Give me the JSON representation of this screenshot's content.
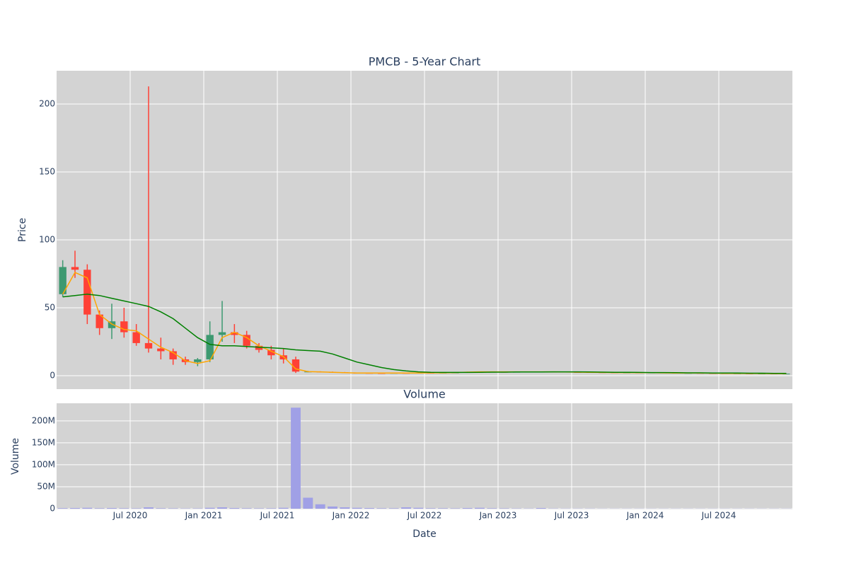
{
  "chart_data": [
    {
      "type": "candlestick",
      "title": "PMCB - 5-Year Chart",
      "y_label": "Price",
      "x": [
        "2020-01",
        "2020-02",
        "2020-03",
        "2020-04",
        "2020-05",
        "2020-06",
        "2020-07",
        "2020-08",
        "2020-09",
        "2020-10",
        "2020-11",
        "2020-12",
        "2021-01",
        "2021-02",
        "2021-03",
        "2021-04",
        "2021-05",
        "2021-06",
        "2021-07",
        "2021-08",
        "2021-09",
        "2021-10",
        "2021-11",
        "2021-12",
        "2022-01",
        "2022-02",
        "2022-03",
        "2022-04",
        "2022-05",
        "2022-06",
        "2022-07",
        "2022-08",
        "2022-09",
        "2022-10",
        "2022-11",
        "2022-12",
        "2023-01",
        "2023-02",
        "2023-03",
        "2023-04",
        "2023-05",
        "2023-06",
        "2023-07",
        "2023-08",
        "2023-09",
        "2023-10",
        "2023-11",
        "2023-12",
        "2024-01",
        "2024-02",
        "2024-03",
        "2024-04",
        "2024-05",
        "2024-06",
        "2024-07",
        "2024-08",
        "2024-09",
        "2024-10",
        "2024-11",
        "2024-12"
      ],
      "open": [
        60,
        80,
        78,
        45,
        35,
        40,
        32,
        24,
        20,
        18,
        12,
        10,
        12,
        30,
        32,
        30,
        22,
        19,
        15,
        12,
        3,
        3,
        2.7,
        2.5,
        2.1,
        2.0,
        1.9,
        1.8,
        2.0,
        1.9,
        2.1,
        2.0,
        2.2,
        2.3,
        2.7,
        2.8,
        2.8,
        2.7,
        2.8,
        2.9,
        2.8,
        2.9,
        2.7,
        2.6,
        2.5,
        2.4,
        2.3,
        2.3,
        2.2,
        2.3,
        2.1,
        2.0,
        2.0,
        1.9,
        1.8,
        1.7,
        1.7,
        1.6,
        1.6,
        1.5
      ],
      "high": [
        85,
        92,
        82,
        48,
        53,
        50,
        38,
        213,
        28,
        20,
        14,
        13,
        40,
        55,
        38,
        33,
        24,
        22,
        20,
        14,
        3.5,
        3.2,
        3,
        2.7,
        2.3,
        2.2,
        2.1,
        2.2,
        2.3,
        2.4,
        2.4,
        2.5,
        2.6,
        2.9,
        3.1,
        3.0,
        3.0,
        3.0,
        3.1,
        3.1,
        3.0,
        3.1,
        2.9,
        2.8,
        2.7,
        2.6,
        2.5,
        2.5,
        2.5,
        2.4,
        2.3,
        2.2,
        2.2,
        2.1,
        2.0,
        1.9,
        1.9,
        1.8,
        1.8,
        1.7
      ],
      "low": [
        58,
        72,
        38,
        30,
        27,
        28,
        22,
        17,
        12,
        8,
        8,
        7,
        10,
        25,
        24,
        20,
        17,
        12,
        9,
        2,
        2.5,
        2.5,
        2.3,
        2.0,
        1.8,
        1.7,
        1.6,
        1.6,
        1.7,
        1.7,
        1.8,
        1.8,
        1.9,
        2.1,
        2.4,
        2.5,
        2.5,
        2.5,
        2.6,
        2.6,
        2.6,
        2.5,
        2.4,
        2.3,
        2.2,
        2.1,
        2.0,
        2.0,
        1.9,
        1.9,
        1.8,
        1.8,
        1.7,
        1.6,
        1.5,
        1.5,
        1.4,
        1.4,
        1.3,
        1.3
      ],
      "close": [
        80,
        78,
        45,
        35,
        40,
        32,
        24,
        20,
        18,
        12,
        10,
        12,
        30,
        32,
        30,
        22,
        19,
        15,
        12,
        3,
        3,
        2.7,
        2.5,
        2.1,
        2.0,
        1.9,
        1.8,
        2.0,
        1.9,
        2.1,
        2.0,
        2.2,
        2.3,
        2.7,
        2.8,
        2.8,
        2.7,
        2.8,
        2.9,
        2.8,
        2.9,
        2.7,
        2.6,
        2.5,
        2.4,
        2.3,
        2.3,
        2.2,
        2.3,
        2.1,
        2.0,
        2.0,
        1.9,
        1.8,
        1.7,
        1.7,
        1.6,
        1.6,
        1.5,
        1.5
      ],
      "increasing_color": "#3d9970",
      "decreasing_color": "#ff4136",
      "series": [
        {
          "color": "#ffa500",
          "values": [
            60,
            76,
            72,
            45,
            38,
            34,
            33,
            27,
            21,
            17,
            11,
            9,
            11,
            28,
            32,
            28,
            22,
            18,
            14,
            5,
            3,
            2.8,
            2.5,
            2.2,
            2.0,
            1.9,
            1.9,
            1.9,
            2.0,
            2.0,
            2.1,
            2.1,
            2.3,
            2.6,
            2.8,
            2.8,
            2.8,
            2.8,
            2.8,
            2.8,
            2.8,
            2.7,
            2.6,
            2.5,
            2.4,
            2.3,
            2.3,
            2.2,
            2.2,
            2.1,
            2.0,
            2.0,
            1.9,
            1.8,
            1.7,
            1.7,
            1.6,
            1.6,
            1.5,
            1.5
          ]
        },
        {
          "color": "#008000",
          "values": [
            58,
            59,
            60,
            59,
            57,
            55,
            53,
            51,
            47,
            42,
            35,
            28,
            23,
            22,
            22,
            21.5,
            21,
            20.5,
            20,
            19,
            18.5,
            18,
            16,
            13,
            10,
            8,
            6,
            4.5,
            3.5,
            2.8,
            2.5,
            2.4,
            2.4,
            2.4,
            2.5,
            2.6,
            2.6,
            2.7,
            2.7,
            2.7,
            2.8,
            2.8,
            2.8,
            2.7,
            2.6,
            2.5,
            2.5,
            2.4,
            2.3,
            2.3,
            2.2,
            2.1,
            2.1,
            2.0,
            2.0,
            1.9,
            1.8,
            1.8,
            1.7,
            1.7
          ]
        }
      ],
      "xlim": [
        "2020-01",
        "2024-12"
      ],
      "ylim": [
        -9.9,
        224.5
      ],
      "yticks": [
        0,
        50,
        100,
        150,
        200
      ],
      "grid": true
    },
    {
      "type": "bar",
      "title": "Volume",
      "y_label": "Volume",
      "x_label": "Date",
      "color": "#a0a0e6",
      "values": [
        1200000,
        1500000,
        2000000,
        1000000,
        1500000,
        1000000,
        800000,
        3000000,
        1000000,
        800000,
        600000,
        700000,
        2000000,
        3000000,
        1500000,
        1000000,
        800000,
        900000,
        2000000,
        230000000,
        25000000,
        10000000,
        5000000,
        3000000,
        2000000,
        1500000,
        1000000,
        1000000,
        3000000,
        2000000,
        1000000,
        1000000,
        800000,
        1500000,
        2000000,
        1000000,
        800000,
        600000,
        500000,
        1500000,
        500000,
        400000,
        400000,
        400000,
        300000,
        300000,
        300000,
        300000,
        300000,
        300000,
        300000,
        300000,
        300000,
        300000,
        300000,
        300000,
        300000,
        300000,
        300000,
        300000
      ],
      "ylim": [
        0,
        240000000
      ],
      "yticks": [
        0,
        {
          "value": 50000000,
          "label": "50M"
        },
        {
          "value": 100000000,
          "label": "100M"
        },
        {
          "value": 150000000,
          "label": "150M"
        },
        {
          "value": 200000000,
          "label": "200M"
        }
      ],
      "xticks": [
        {
          "value": "2020-07",
          "label": "Jul 2020"
        },
        {
          "value": "2021-01",
          "label": "Jan 2021"
        },
        {
          "value": "2021-07",
          "label": "Jul 2021"
        },
        {
          "value": "2022-01",
          "label": "Jan 2022"
        },
        {
          "value": "2022-07",
          "label": "Jul 2022"
        },
        {
          "value": "2023-01",
          "label": "Jan 2023"
        },
        {
          "value": "2023-07",
          "label": "Jul 2023"
        },
        {
          "value": "2024-01",
          "label": "Jan 2024"
        },
        {
          "value": "2024-07",
          "label": "Jul 2024"
        }
      ],
      "grid": true
    }
  ]
}
